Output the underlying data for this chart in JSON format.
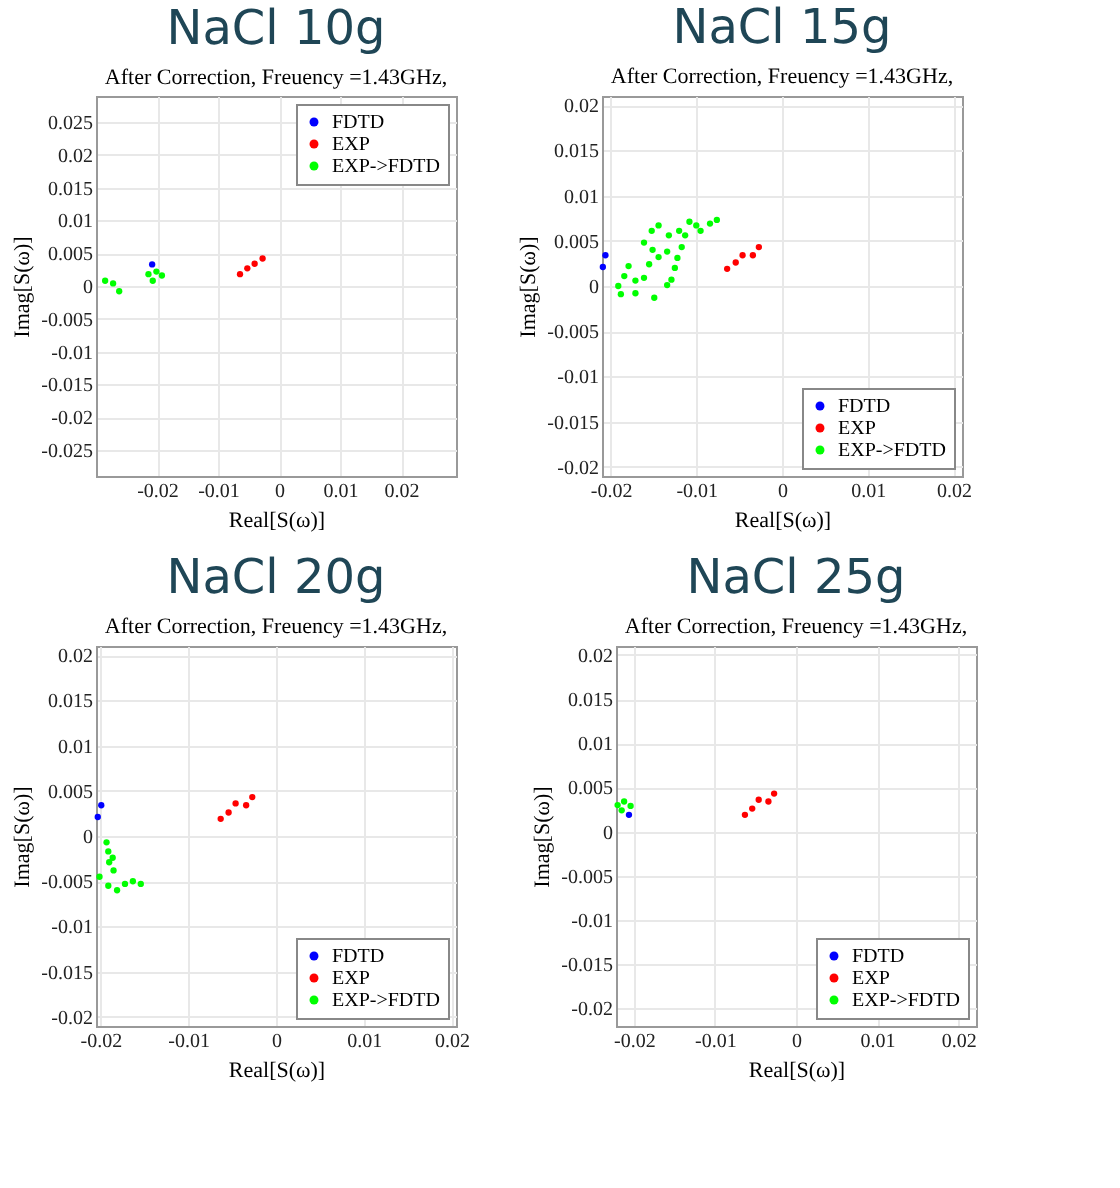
{
  "chart_data": [
    {
      "type": "scatter",
      "title": "NaCl 10g",
      "subtitle": "After Correction, Freuency =1.43GHz,",
      "xlabel": "Real[S(ω)]",
      "ylabel": "Imag[S(ω)]",
      "xlim": [
        -0.03,
        0.029
      ],
      "ylim": [
        -0.029,
        0.029
      ],
      "xticks": [
        -0.02,
        -0.01,
        0,
        0.01,
        0.02
      ],
      "yticks": [
        -0.025,
        -0.02,
        -0.015,
        -0.01,
        -0.005,
        0,
        0.005,
        0.01,
        0.015,
        0.02,
        0.025
      ],
      "grid": true,
      "legend": "top right",
      "marker": "circle",
      "series": [
        {
          "name": "FDTD",
          "color": "#0000ff",
          "x": [
            -0.0208
          ],
          "values": [
            0.0033
          ]
        },
        {
          "name": "EXP",
          "color": "#ff0000",
          "x": [
            -0.0064,
            -0.0052,
            -0.004,
            -0.0027
          ],
          "values": [
            0.0018,
            0.0027,
            0.0034,
            0.0042
          ]
        },
        {
          "name": "EXP->FDTD",
          "color": "#00ff00",
          "x": [
            -0.0285,
            -0.0272,
            -0.0262,
            -0.0214,
            -0.0201,
            -0.0207,
            -0.0192
          ],
          "values": [
            0.0008,
            0.0004,
            -0.0008,
            0.0018,
            0.0022,
            0.0008,
            0.0016
          ]
        }
      ]
    },
    {
      "type": "scatter",
      "title": "NaCl 15g",
      "subtitle": "After Correction, Freuency =1.43GHz,",
      "xlabel": "Real[S(ω)]",
      "ylabel": "Imag[S(ω)]",
      "xlim": [
        -0.021,
        0.021
      ],
      "ylim": [
        -0.021,
        0.021
      ],
      "xticks": [
        -0.02,
        -0.01,
        0,
        0.01,
        0.02
      ],
      "yticks": [
        -0.02,
        -0.015,
        -0.01,
        -0.005,
        0,
        0.005,
        0.01,
        0.015,
        0.02
      ],
      "grid": true,
      "legend": "bottom right",
      "marker": "circle",
      "series": [
        {
          "name": "FDTD",
          "color": "#0000ff",
          "x": [
            -0.0209,
            -0.0206
          ],
          "values": [
            0.0021,
            0.0034
          ]
        },
        {
          "name": "EXP",
          "color": "#ff0000",
          "x": [
            -0.0064,
            -0.0054,
            -0.0046,
            -0.0034,
            -0.0027
          ],
          "values": [
            0.0019,
            0.0026,
            0.0034,
            0.0034,
            0.0043
          ]
        },
        {
          "name": "EXP->FDTD",
          "color": "#00ff00",
          "x": [
            -0.0191,
            -0.0184,
            -0.0179,
            -0.0188,
            -0.0171,
            -0.0161,
            -0.0155,
            -0.0151,
            -0.0161,
            -0.0152,
            -0.0144,
            -0.0149,
            -0.0134,
            -0.0144,
            -0.0134,
            -0.0132,
            -0.0129,
            -0.0125,
            -0.0122,
            -0.012,
            -0.0113,
            -0.0108,
            -0.01,
            -0.0095,
            -0.0084,
            -0.0076,
            -0.0117,
            -0.0171
          ],
          "values": [
            0,
            0.0011,
            0.0022,
            -0.0009,
            -0.0008,
            0.0009,
            0.0024,
            0.004,
            0.0048,
            0.0061,
            0.0067,
            -0.0013,
            0.0001,
            0.0032,
            0.0038,
            0.0056,
            0.0007,
            0.002,
            0.0031,
            0.0061,
            0.0056,
            0.0071,
            0.0067,
            0.0061,
            0.0069,
            0.0073,
            0.0043,
            0.0006
          ]
        }
      ]
    },
    {
      "type": "scatter",
      "title": "NaCl 20g",
      "subtitle": "After Correction, Freuency =1.43GHz,",
      "xlabel": "Real[S(ω)]",
      "ylabel": "Imag[S(ω)]",
      "xlim": [
        -0.0205,
        0.0205
      ],
      "ylim": [
        -0.021,
        0.021
      ],
      "xticks": [
        -0.02,
        -0.01,
        0,
        0.01,
        0.02
      ],
      "yticks": [
        -0.02,
        -0.015,
        -0.01,
        -0.005,
        0,
        0.005,
        0.01,
        0.015,
        0.02
      ],
      "grid": true,
      "legend": "bottom right",
      "marker": "circle",
      "series": [
        {
          "name": "FDTD",
          "color": "#0000ff",
          "x": [
            -0.0203,
            -0.0199
          ],
          "values": [
            0.0021,
            0.0034
          ]
        },
        {
          "name": "EXP",
          "color": "#ff0000",
          "x": [
            -0.0063,
            -0.0054,
            -0.0046,
            -0.0034,
            -0.0027
          ],
          "values": [
            0.0019,
            0.0026,
            0.0036,
            0.0034,
            0.0043
          ]
        },
        {
          "name": "EXP->FDTD",
          "color": "#00ff00",
          "x": [
            -0.0193,
            -0.0191,
            -0.0186,
            -0.019,
            -0.0185,
            -0.0201,
            -0.0191,
            -0.0181,
            -0.0172,
            -0.0163,
            -0.0154
          ],
          "values": [
            -0.0007,
            -0.0017,
            -0.0024,
            -0.0029,
            -0.0038,
            -0.0045,
            -0.0055,
            -0.006,
            -0.0053,
            -0.005,
            -0.0053
          ]
        }
      ]
    },
    {
      "type": "scatter",
      "title": "NaCl 25g",
      "subtitle": "After Correction, Freuency =1.43GHz,",
      "xlabel": "Real[S(ω)]",
      "ylabel": "Imag[S(ω)]",
      "xlim": [
        -0.0222,
        0.0222
      ],
      "ylim": [
        -0.022,
        0.021
      ],
      "xticks": [
        -0.02,
        -0.01,
        0,
        0.01,
        0.02
      ],
      "yticks": [
        -0.02,
        -0.015,
        -0.01,
        -0.005,
        0,
        0.005,
        0.01,
        0.015,
        0.02
      ],
      "grid": true,
      "legend": "bottom right",
      "marker": "circle",
      "series": [
        {
          "name": "FDTD",
          "color": "#0000ff",
          "x": [
            -0.0206
          ],
          "values": [
            0.0019
          ]
        },
        {
          "name": "EXP",
          "color": "#ff0000",
          "x": [
            -0.0063,
            -0.0054,
            -0.0046,
            -0.0034,
            -0.0027
          ],
          "values": [
            0.0019,
            0.0026,
            0.0036,
            0.0034,
            0.0043
          ]
        },
        {
          "name": "EXP->FDTD",
          "color": "#00ff00",
          "x": [
            -0.022,
            -0.0212,
            -0.0204,
            -0.0215
          ],
          "values": [
            0.003,
            0.0034,
            0.0029,
            0.0024
          ]
        }
      ]
    }
  ]
}
